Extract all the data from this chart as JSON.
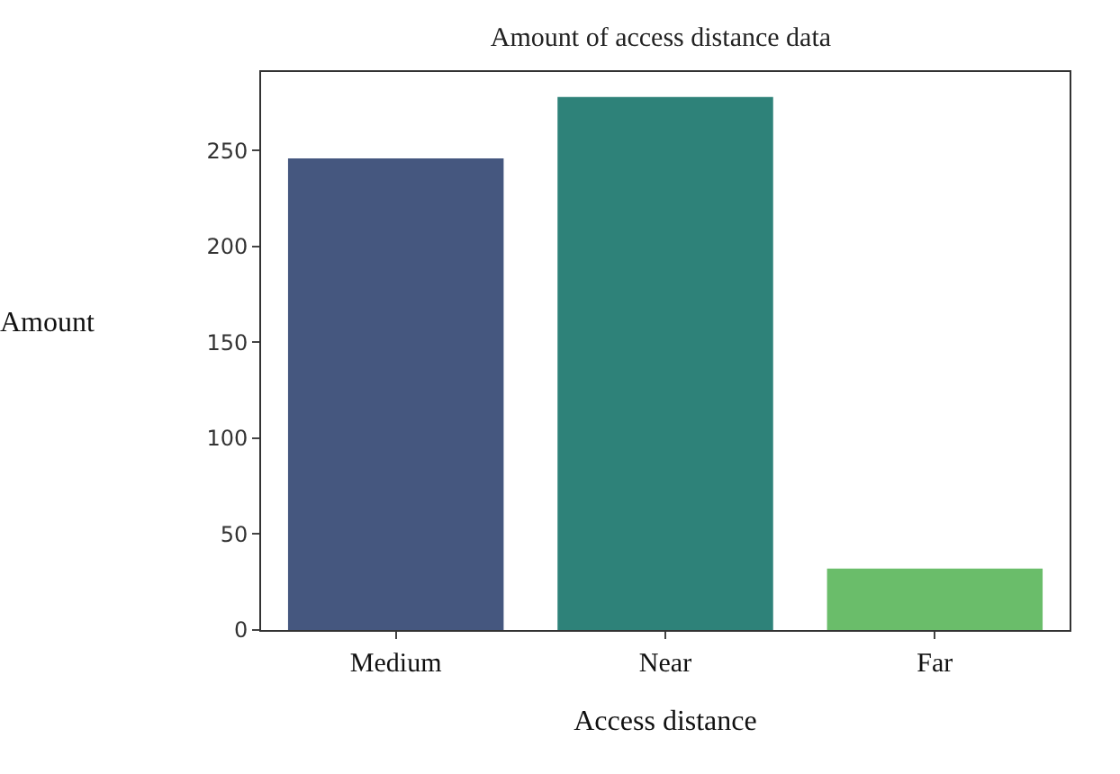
{
  "chart_data": {
    "type": "bar",
    "title": "Amount of access distance data",
    "xlabel": "Access distance",
    "ylabel": "Amount",
    "categories": [
      "Medium",
      "Near",
      "Far"
    ],
    "values": [
      246,
      278,
      32
    ],
    "colors": [
      "#45577f",
      "#2e8279",
      "#6abd6a"
    ],
    "ylim": [
      0,
      291
    ],
    "yticks": [
      0,
      50,
      100,
      150,
      200,
      250
    ]
  }
}
